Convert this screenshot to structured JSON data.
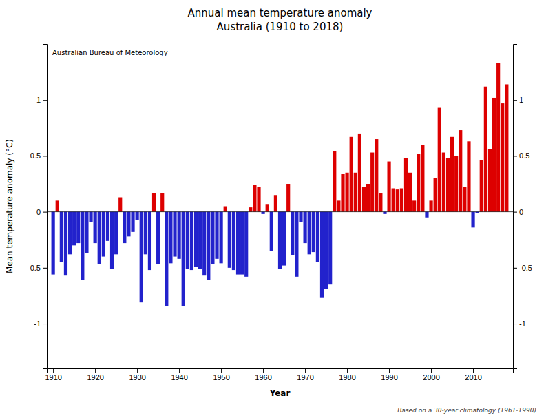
{
  "chart_data": {
    "type": "bar",
    "title": "Annual mean temperature anomaly",
    "subtitle": "Australia (1910 to 2018)",
    "xlabel": "Year",
    "ylabel": "Mean temperature anomaly (°C)",
    "annotations": [
      "Australian Bureau of Meteorology",
      "Based on a 30-year climatology (1961-1990)"
    ],
    "x": [
      1910,
      1911,
      1912,
      1913,
      1914,
      1915,
      1916,
      1917,
      1918,
      1919,
      1920,
      1921,
      1922,
      1923,
      1924,
      1925,
      1926,
      1927,
      1928,
      1929,
      1930,
      1931,
      1932,
      1933,
      1934,
      1935,
      1936,
      1937,
      1938,
      1939,
      1940,
      1941,
      1942,
      1943,
      1944,
      1945,
      1946,
      1947,
      1948,
      1949,
      1950,
      1951,
      1952,
      1953,
      1954,
      1955,
      1956,
      1957,
      1958,
      1959,
      1960,
      1961,
      1962,
      1963,
      1964,
      1965,
      1966,
      1967,
      1968,
      1969,
      1970,
      1971,
      1972,
      1973,
      1974,
      1975,
      1976,
      1977,
      1978,
      1979,
      1980,
      1981,
      1982,
      1983,
      1984,
      1985,
      1986,
      1987,
      1988,
      1989,
      1990,
      1991,
      1992,
      1993,
      1994,
      1995,
      1996,
      1997,
      1998,
      1999,
      2000,
      2001,
      2002,
      2003,
      2004,
      2005,
      2006,
      2007,
      2008,
      2009,
      2010,
      2011,
      2012,
      2013,
      2014,
      2015,
      2016,
      2017,
      2018
    ],
    "values": [
      -0.56,
      0.1,
      -0.45,
      -0.57,
      -0.38,
      -0.3,
      -0.28,
      -0.61,
      -0.37,
      -0.09,
      -0.28,
      -0.47,
      -0.4,
      -0.26,
      -0.51,
      -0.38,
      0.13,
      -0.28,
      -0.22,
      -0.18,
      -0.07,
      -0.81,
      -0.38,
      -0.52,
      0.17,
      -0.47,
      0.17,
      -0.84,
      -0.46,
      -0.4,
      -0.42,
      -0.84,
      -0.51,
      -0.52,
      -0.49,
      -0.51,
      -0.57,
      -0.61,
      -0.47,
      -0.42,
      -0.46,
      0.05,
      -0.5,
      -0.52,
      -0.56,
      -0.56,
      -0.58,
      0.04,
      0.24,
      0.22,
      -0.02,
      0.07,
      -0.35,
      0.15,
      -0.51,
      -0.48,
      0.25,
      -0.39,
      -0.58,
      -0.09,
      -0.28,
      -0.38,
      -0.36,
      -0.45,
      -0.77,
      -0.69,
      -0.65,
      0.54,
      0.1,
      0.34,
      0.35,
      0.67,
      0.35,
      0.7,
      0.22,
      0.25,
      0.53,
      0.65,
      0.17,
      -0.02,
      0.45,
      0.21,
      0.2,
      0.21,
      0.48,
      0.35,
      0.1,
      0.52,
      0.6,
      -0.05,
      0.1,
      0.3,
      0.93,
      0.53,
      0.48,
      0.67,
      0.5,
      0.73,
      0.22,
      0.63,
      -0.14,
      -0.01,
      0.46,
      1.12,
      0.56,
      1.02,
      1.33,
      0.97,
      1.14
    ],
    "colors": [
      "#2222cc",
      "#dd0000",
      "#2222cc",
      "#2222cc",
      "#2222cc",
      "#2222cc",
      "#2222cc",
      "#2222cc",
      "#2222cc",
      "#2222cc",
      "#2222cc",
      "#2222cc",
      "#2222cc",
      "#2222cc",
      "#2222cc",
      "#2222cc",
      "#dd0000",
      "#2222cc",
      "#2222cc",
      "#2222cc",
      "#2222cc",
      "#2222cc",
      "#2222cc",
      "#2222cc",
      "#dd0000",
      "#2222cc",
      "#dd0000",
      "#2222cc",
      "#2222cc",
      "#2222cc",
      "#2222cc",
      "#2222cc",
      "#2222cc",
      "#2222cc",
      "#2222cc",
      "#2222cc",
      "#2222cc",
      "#2222cc",
      "#2222cc",
      "#2222cc",
      "#2222cc",
      "#dd0000",
      "#2222cc",
      "#2222cc",
      "#2222cc",
      "#2222cc",
      "#2222cc",
      "#dd0000",
      "#dd0000",
      "#dd0000",
      "#2222cc",
      "#dd0000",
      "#2222cc",
      "#dd0000",
      "#2222cc",
      "#2222cc",
      "#dd0000",
      "#2222cc",
      "#2222cc",
      "#2222cc",
      "#2222cc",
      "#2222cc",
      "#2222cc",
      "#2222cc",
      "#2222cc",
      "#2222cc",
      "#2222cc",
      "#dd0000",
      "#dd0000",
      "#dd0000",
      "#dd0000",
      "#dd0000",
      "#dd0000",
      "#dd0000",
      "#dd0000",
      "#dd0000",
      "#dd0000",
      "#dd0000",
      "#dd0000",
      "#2222cc",
      "#dd0000",
      "#dd0000",
      "#dd0000",
      "#dd0000",
      "#dd0000",
      "#dd0000",
      "#dd0000",
      "#dd0000",
      "#dd0000",
      "#2222cc",
      "#dd0000",
      "#dd0000",
      "#dd0000",
      "#dd0000",
      "#dd0000",
      "#dd0000",
      "#dd0000",
      "#dd0000",
      "#dd0000",
      "#dd0000",
      "#2222cc",
      "#2222cc",
      "#dd0000",
      "#dd0000",
      "#dd0000",
      "#dd0000",
      "#dd0000",
      "#dd0000",
      "#dd0000"
    ],
    "xlim": [
      1908.5,
      2019.5
    ],
    "ylim": [
      -1.4,
      1.5
    ],
    "xticks": [
      1910,
      1920,
      1930,
      1940,
      1950,
      1960,
      1970,
      1980,
      1990,
      2000,
      2010
    ],
    "yticks": [
      -1,
      -0.5,
      0,
      0.5,
      1
    ],
    "y2lim": [
      -1.4,
      1.5
    ],
    "y2ticks": [
      -1,
      -0.5,
      0,
      0.5,
      1
    ],
    "grid": false
  }
}
